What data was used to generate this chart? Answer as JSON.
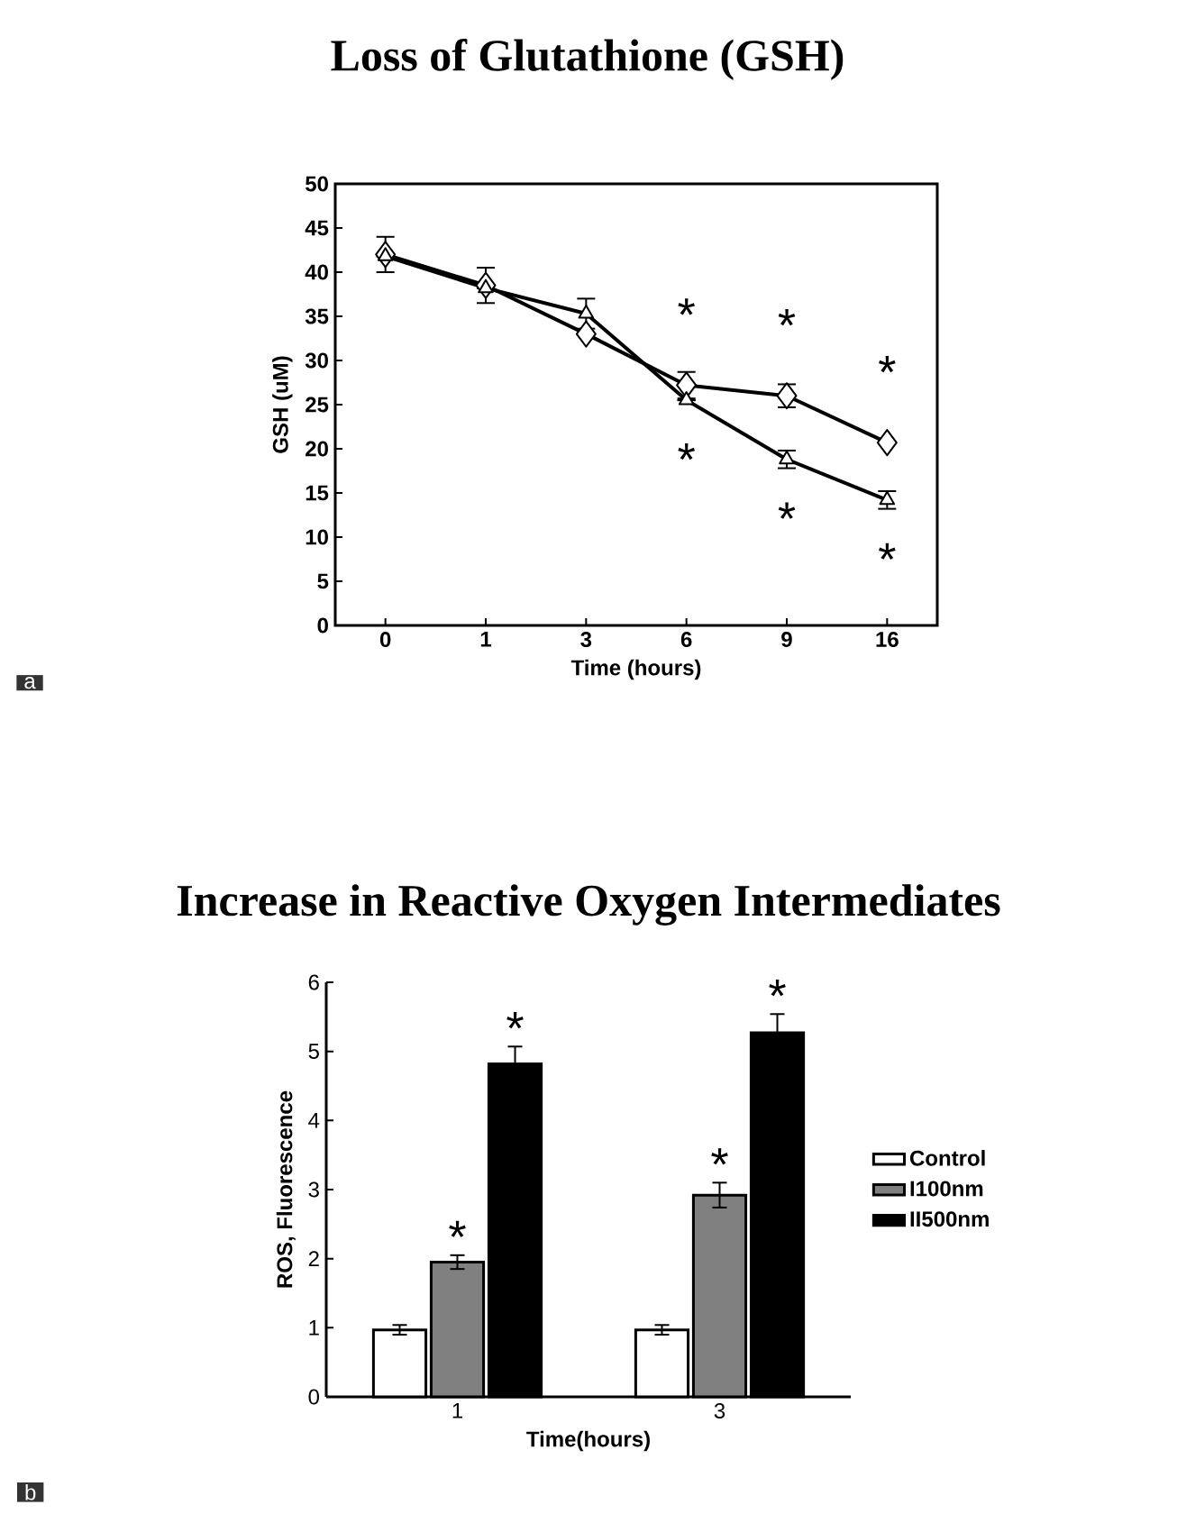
{
  "chart_data": [
    {
      "type": "line",
      "title": "Loss of Glutathione (GSH)",
      "xlabel": "Time (hours)",
      "ylabel": "GSH (uM)",
      "categories": [
        "0",
        "1",
        "3",
        "6",
        "9",
        "16"
      ],
      "ylim": [
        0,
        50
      ],
      "yticks": [
        0,
        5,
        10,
        15,
        20,
        25,
        30,
        35,
        40,
        45,
        50
      ],
      "grid": false,
      "legend": false,
      "series": [
        {
          "color": "#000000",
          "marker": "diamond",
          "values": [
            42,
            38.5,
            33,
            27.2,
            26,
            20.7
          ],
          "errors": [
            2,
            2,
            null,
            1.5,
            1.3,
            null
          ],
          "value_labels": [
            null,
            null,
            null,
            "*",
            "*",
            "*"
          ]
        },
        {
          "color": "#000000",
          "marker": "triangle",
          "values": [
            41.8,
            38.2,
            35.3,
            25.5,
            18.8,
            14.2
          ],
          "errors": [
            null,
            null,
            1.7,
            null,
            1,
            1
          ],
          "value_labels": [
            null,
            null,
            null,
            "*",
            "*",
            "*"
          ]
        }
      ],
      "annotations": [
        "a"
      ]
    },
    {
      "type": "bar",
      "title": "Increase in Reactive Oxygen Intermediates",
      "xlabel": "Time(hours)",
      "ylabel": "ROS, Fluorescence",
      "categories": [
        "1",
        "3"
      ],
      "ylim": [
        0,
        6
      ],
      "yticks": [
        0,
        1,
        2,
        3,
        4,
        5,
        6
      ],
      "grid": false,
      "legend": "right",
      "series": [
        {
          "name": "Control",
          "color": "#ffffff",
          "values": [
            0.97,
            0.97
          ],
          "errors": [
            0.07,
            0.07
          ]
        },
        {
          "name": "I100nm",
          "color": "#808080",
          "values": [
            1.95,
            2.92
          ],
          "errors": [
            0.1,
            0.18
          ],
          "value_labels": [
            "*",
            "*"
          ]
        },
        {
          "name": "II500nm",
          "color": "#000000",
          "values": [
            4.82,
            5.27
          ],
          "errors": [
            0.25,
            0.27
          ],
          "value_labels": [
            "*",
            "*"
          ]
        }
      ],
      "annotations": [
        "b"
      ]
    }
  ]
}
